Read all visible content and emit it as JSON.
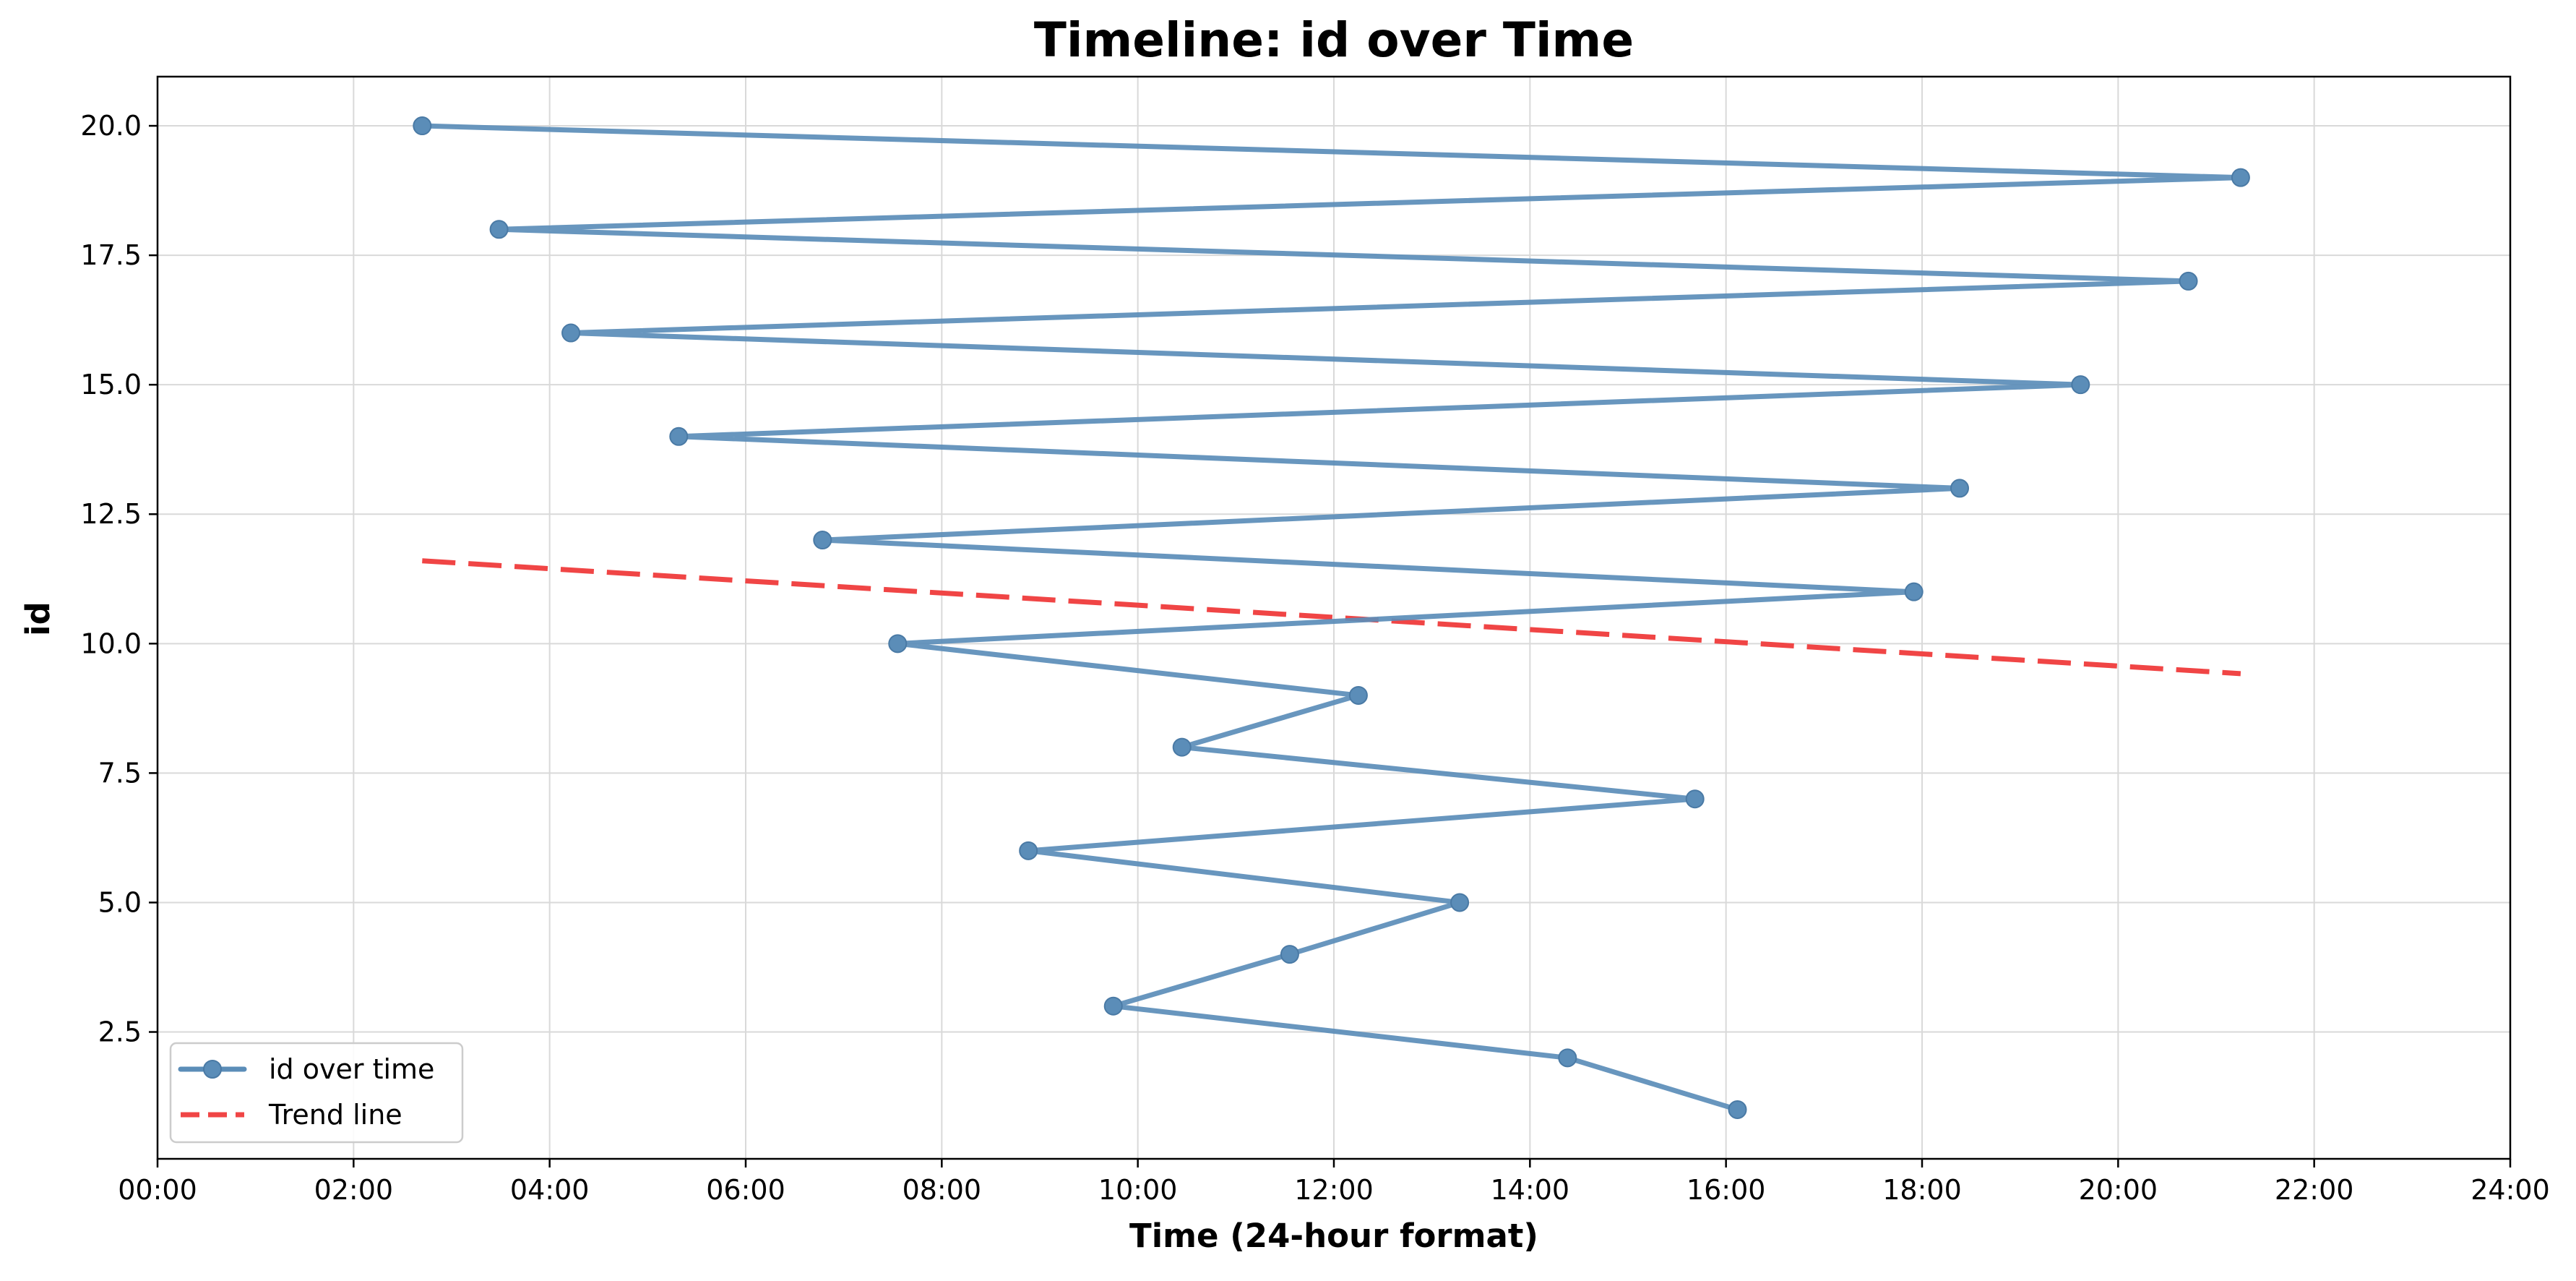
{
  "chart_data": {
    "type": "line",
    "title": "Timeline: id over Time",
    "xlabel": "Time (24-hour format)",
    "ylabel": "id",
    "x_unit": "time of day (HH:MM)",
    "xlim": [
      "00:00",
      "24:00"
    ],
    "ylim": [
      0.05,
      20.95
    ],
    "x_ticks": [
      "00:00",
      "02:00",
      "04:00",
      "06:00",
      "08:00",
      "10:00",
      "12:00",
      "14:00",
      "16:00",
      "18:00",
      "20:00",
      "22:00",
      "24:00"
    ],
    "y_ticks": [
      "2.5",
      "5.0",
      "7.5",
      "10.0",
      "12.5",
      "15.0",
      "17.5",
      "20.0"
    ],
    "grid": true,
    "legend_position": "bottom-left",
    "series": [
      {
        "name": "id over time",
        "style": "line-with-markers",
        "color": "#5b8db8",
        "points": [
          {
            "x": "02:42",
            "y": 20
          },
          {
            "x": "21:15",
            "y": 19
          },
          {
            "x": "03:29",
            "y": 18
          },
          {
            "x": "20:43",
            "y": 17
          },
          {
            "x": "04:13",
            "y": 16
          },
          {
            "x": "19:37",
            "y": 15
          },
          {
            "x": "05:19",
            "y": 14
          },
          {
            "x": "18:23",
            "y": 13
          },
          {
            "x": "06:47",
            "y": 12
          },
          {
            "x": "17:55",
            "y": 11
          },
          {
            "x": "07:33",
            "y": 10
          },
          {
            "x": "12:15",
            "y": 9
          },
          {
            "x": "10:27",
            "y": 8
          },
          {
            "x": "15:41",
            "y": 7
          },
          {
            "x": "08:53",
            "y": 6
          },
          {
            "x": "13:17",
            "y": 5
          },
          {
            "x": "11:33",
            "y": 4
          },
          {
            "x": "09:45",
            "y": 3
          },
          {
            "x": "14:23",
            "y": 2
          },
          {
            "x": "16:07",
            "y": 1
          }
        ]
      },
      {
        "name": "Trend line",
        "style": "dashed",
        "color": "#f04545",
        "points": [
          {
            "x": "02:42",
            "y": 11.6
          },
          {
            "x": "21:15",
            "y": 9.42
          }
        ]
      }
    ]
  }
}
